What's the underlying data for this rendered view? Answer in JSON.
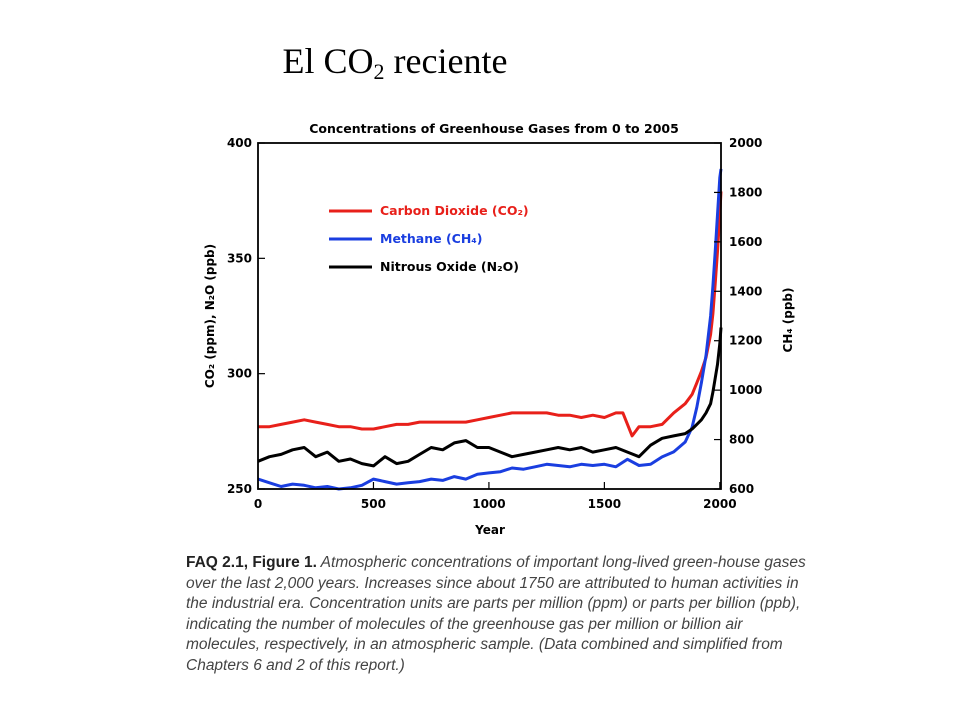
{
  "slide": {
    "title_prefix": "El CO",
    "title_sub": "2",
    "title_suffix": " reciente"
  },
  "caption": {
    "lead": "FAQ 2.1, Figure 1.",
    "text": " Atmospheric concentrations of important long-lived green-house gases over the last 2,000 years. Increases since about 1750 are attributed to human activities in the industrial era. Concentration units are parts per million (ppm) or parts per billion (ppb), indicating the number of molecules of the greenhouse gas per million or billion air molecules, respectively, in an atmospheric sample. (Data combined and simplified from Chapters 6 and 2 of this report.)"
  },
  "chart_data": {
    "type": "line",
    "title": "Concentrations of Greenhouse Gases from 0 to 2005",
    "xlabel": "Year",
    "ylabel_left": "CO₂ (ppm), N₂O (ppb)",
    "ylabel_right": "CH₄ (ppb)",
    "xlim": [
      0,
      2005
    ],
    "ylim_left": [
      250,
      400
    ],
    "ylim_right": [
      600,
      2000
    ],
    "x_ticks": [
      "0",
      "500",
      "1000",
      "1500",
      "2000"
    ],
    "y_ticks_left": [
      "250",
      "300",
      "350",
      "400"
    ],
    "y_ticks_right": [
      "600",
      "800",
      "1000",
      "1200",
      "1400",
      "1600",
      "1800",
      "2000"
    ],
    "legend_position": "top-left",
    "series": [
      {
        "name": "Carbon Dioxide (CO₂)",
        "color": "#e8201a",
        "axis": "left",
        "x": [
          0,
          50,
          100,
          150,
          200,
          250,
          300,
          350,
          400,
          450,
          500,
          550,
          600,
          650,
          700,
          750,
          800,
          850,
          900,
          950,
          1000,
          1050,
          1100,
          1150,
          1200,
          1250,
          1300,
          1350,
          1400,
          1450,
          1500,
          1550,
          1580,
          1600,
          1620,
          1650,
          1700,
          1750,
          1800,
          1850,
          1880,
          1900,
          1920,
          1940,
          1960,
          1970,
          1980,
          1990,
          2000,
          2005
        ],
        "values": [
          277,
          277,
          278,
          279,
          280,
          279,
          278,
          277,
          277,
          276,
          276,
          277,
          278,
          278,
          279,
          279,
          279,
          279,
          279,
          280,
          281,
          282,
          283,
          283,
          283,
          283,
          282,
          282,
          281,
          282,
          281,
          283,
          283,
          278,
          273,
          277,
          277,
          278,
          283,
          287,
          291,
          296,
          301,
          307,
          317,
          326,
          339,
          353,
          369,
          379
        ]
      },
      {
        "name": "Methane (CH₄)",
        "color": "#1a3ee0",
        "axis": "right",
        "x": [
          0,
          50,
          100,
          150,
          200,
          250,
          300,
          350,
          400,
          450,
          500,
          550,
          600,
          650,
          700,
          750,
          800,
          850,
          900,
          950,
          1000,
          1050,
          1100,
          1150,
          1200,
          1250,
          1300,
          1350,
          1400,
          1450,
          1500,
          1550,
          1600,
          1650,
          1700,
          1750,
          1800,
          1850,
          1880,
          1900,
          1920,
          1940,
          1960,
          1970,
          1980,
          1990,
          2000,
          2005
        ],
        "values": [
          640,
          625,
          610,
          620,
          615,
          605,
          610,
          600,
          605,
          615,
          640,
          630,
          620,
          625,
          630,
          640,
          635,
          650,
          640,
          660,
          665,
          670,
          685,
          680,
          690,
          700,
          695,
          690,
          700,
          695,
          700,
          690,
          720,
          695,
          700,
          730,
          750,
          790,
          850,
          930,
          1030,
          1140,
          1300,
          1420,
          1560,
          1710,
          1860,
          1895
        ]
      },
      {
        "name": "Nitrous Oxide (N₂O)",
        "color": "#000000",
        "axis": "left",
        "x": [
          0,
          50,
          100,
          150,
          200,
          250,
          300,
          350,
          400,
          450,
          500,
          550,
          600,
          650,
          700,
          750,
          800,
          850,
          900,
          950,
          1000,
          1050,
          1100,
          1150,
          1200,
          1250,
          1300,
          1350,
          1400,
          1450,
          1500,
          1550,
          1600,
          1650,
          1700,
          1750,
          1800,
          1850,
          1880,
          1900,
          1920,
          1940,
          1960,
          1970,
          1980,
          1990,
          2000,
          2005
        ],
        "values": [
          262,
          264,
          265,
          267,
          268,
          264,
          266,
          262,
          263,
          261,
          260,
          264,
          261,
          262,
          265,
          268,
          267,
          270,
          271,
          268,
          268,
          266,
          264,
          265,
          266,
          267,
          268,
          267,
          268,
          266,
          267,
          268,
          266,
          264,
          269,
          272,
          273,
          274,
          276,
          278,
          280,
          283,
          287,
          292,
          298,
          304,
          313,
          320
        ]
      }
    ]
  }
}
